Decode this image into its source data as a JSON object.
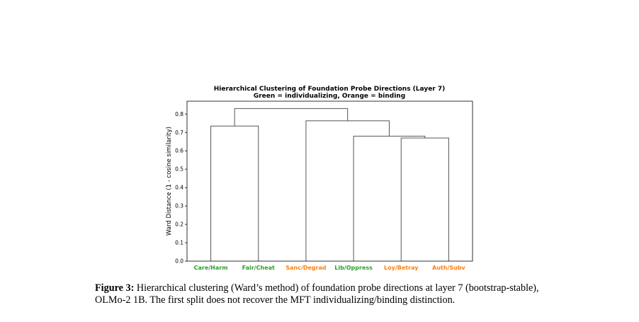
{
  "chart_data": {
    "type": "dendrogram",
    "title": "Hierarchical Clustering of Foundation Probe Directions (Layer 7)",
    "subtitle": "Green = individualizing, Orange = binding",
    "ylabel": "Ward Distance (1 - cosine similarity)",
    "xlabel": "",
    "ylim": [
      0,
      0.87
    ],
    "yticks": [
      "0.0",
      "0.1",
      "0.2",
      "0.3",
      "0.4",
      "0.5",
      "0.6",
      "0.7",
      "0.8"
    ],
    "colors": {
      "individualizing": "#2ca02c",
      "binding": "#ff7f0e",
      "link": "#555555"
    },
    "leaves": [
      {
        "label": "Care/Harm",
        "group": "individualizing"
      },
      {
        "label": "Fair/Cheat",
        "group": "individualizing"
      },
      {
        "label": "Sanc/Degrad",
        "group": "binding"
      },
      {
        "label": "Lib/Oppress",
        "group": "individualizing"
      },
      {
        "label": "Loy/Betray",
        "group": "binding"
      },
      {
        "label": "Auth/Subv",
        "group": "binding"
      }
    ],
    "merges": [
      {
        "left": 4,
        "right": 5,
        "height": 0.67
      },
      {
        "left": 3,
        "right": "m0",
        "height": 0.68
      },
      {
        "left": 0,
        "right": 1,
        "height": 0.735
      },
      {
        "left": 2,
        "right": "m1",
        "height": 0.763
      },
      {
        "left": "m2",
        "right": "m3",
        "height": 0.83
      }
    ]
  },
  "caption": {
    "label": "Figure 3:",
    "text": "Hierarchical clustering (Ward’s method) of foundation probe directions at layer 7 (bootstrap-stable), OLMo-2 1B. The first split does not recover the MFT individualizing/binding distinction."
  }
}
